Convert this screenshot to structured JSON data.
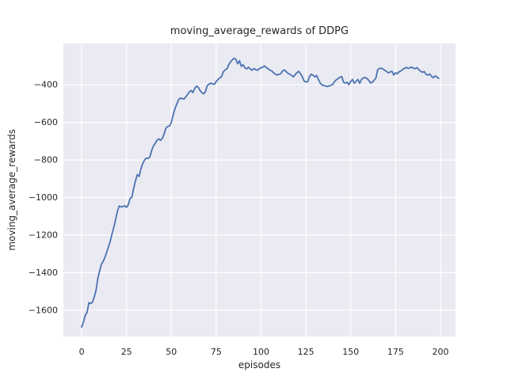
{
  "chart_data": {
    "type": "line",
    "title": "moving_average_rewards of DDPG",
    "xlabel": "episodes",
    "ylabel": "moving_average_rewards",
    "x_ticks": [
      0,
      25,
      50,
      75,
      100,
      125,
      150,
      175,
      200
    ],
    "x_tick_labels": [
      "0",
      "25",
      "50",
      "75",
      "100",
      "125",
      "150",
      "175",
      "200"
    ],
    "y_ticks": [
      -400,
      -600,
      -800,
      -1000,
      -1200,
      -1400,
      -1600
    ],
    "y_tick_labels": [
      "−400",
      "−600",
      "−800",
      "−1000",
      "−1200",
      "−1400",
      "−1600"
    ],
    "xlim": [
      -10.2,
      208.4
    ],
    "ylim": [
      -1740,
      -180
    ],
    "grid": true,
    "legend": "none",
    "colors": {
      "line": "#4c72b0",
      "axes_background": "#eaeaf2",
      "grid": "#ffffff",
      "figure_background": "#ffffff",
      "text": "#262626"
    },
    "series": [
      {
        "name": "moving_average_rewards",
        "x_mode": "index",
        "values": [
          -1690,
          -1662,
          -1628,
          -1612,
          -1560,
          -1565,
          -1558,
          -1530,
          -1495,
          -1430,
          -1392,
          -1355,
          -1340,
          -1318,
          -1290,
          -1260,
          -1232,
          -1190,
          -1155,
          -1114,
          -1070,
          -1045,
          -1050,
          -1048,
          -1044,
          -1052,
          -1038,
          -1005,
          -998,
          -950,
          -912,
          -878,
          -888,
          -848,
          -820,
          -800,
          -790,
          -792,
          -785,
          -750,
          -725,
          -712,
          -695,
          -688,
          -695,
          -685,
          -660,
          -630,
          -622,
          -618,
          -600,
          -560,
          -528,
          -502,
          -480,
          -470,
          -473,
          -476,
          -464,
          -452,
          -438,
          -430,
          -441,
          -420,
          -407,
          -413,
          -430,
          -442,
          -448,
          -436,
          -404,
          -396,
          -391,
          -395,
          -397,
          -382,
          -372,
          -362,
          -356,
          -330,
          -320,
          -315,
          -292,
          -278,
          -267,
          -258,
          -264,
          -288,
          -272,
          -302,
          -292,
          -310,
          -315,
          -306,
          -316,
          -322,
          -313,
          -319,
          -322,
          -314,
          -309,
          -306,
          -299,
          -309,
          -315,
          -322,
          -326,
          -336,
          -343,
          -348,
          -344,
          -341,
          -326,
          -321,
          -329,
          -339,
          -343,
          -350,
          -357,
          -346,
          -335,
          -328,
          -341,
          -357,
          -380,
          -385,
          -383,
          -356,
          -343,
          -349,
          -357,
          -350,
          -372,
          -391,
          -400,
          -404,
          -406,
          -409,
          -405,
          -402,
          -398,
          -381,
          -373,
          -366,
          -359,
          -356,
          -386,
          -391,
          -386,
          -399,
          -381,
          -371,
          -392,
          -381,
          -371,
          -392,
          -371,
          -363,
          -361,
          -365,
          -376,
          -390,
          -386,
          -376,
          -364,
          -320,
          -313,
          -311,
          -316,
          -323,
          -329,
          -336,
          -331,
          -328,
          -348,
          -335,
          -341,
          -330,
          -325,
          -318,
          -312,
          -307,
          -313,
          -309,
          -305,
          -312,
          -314,
          -308,
          -320,
          -328,
          -333,
          -329,
          -345,
          -348,
          -342,
          -355,
          -362,
          -352,
          -358,
          -366
        ]
      }
    ]
  }
}
